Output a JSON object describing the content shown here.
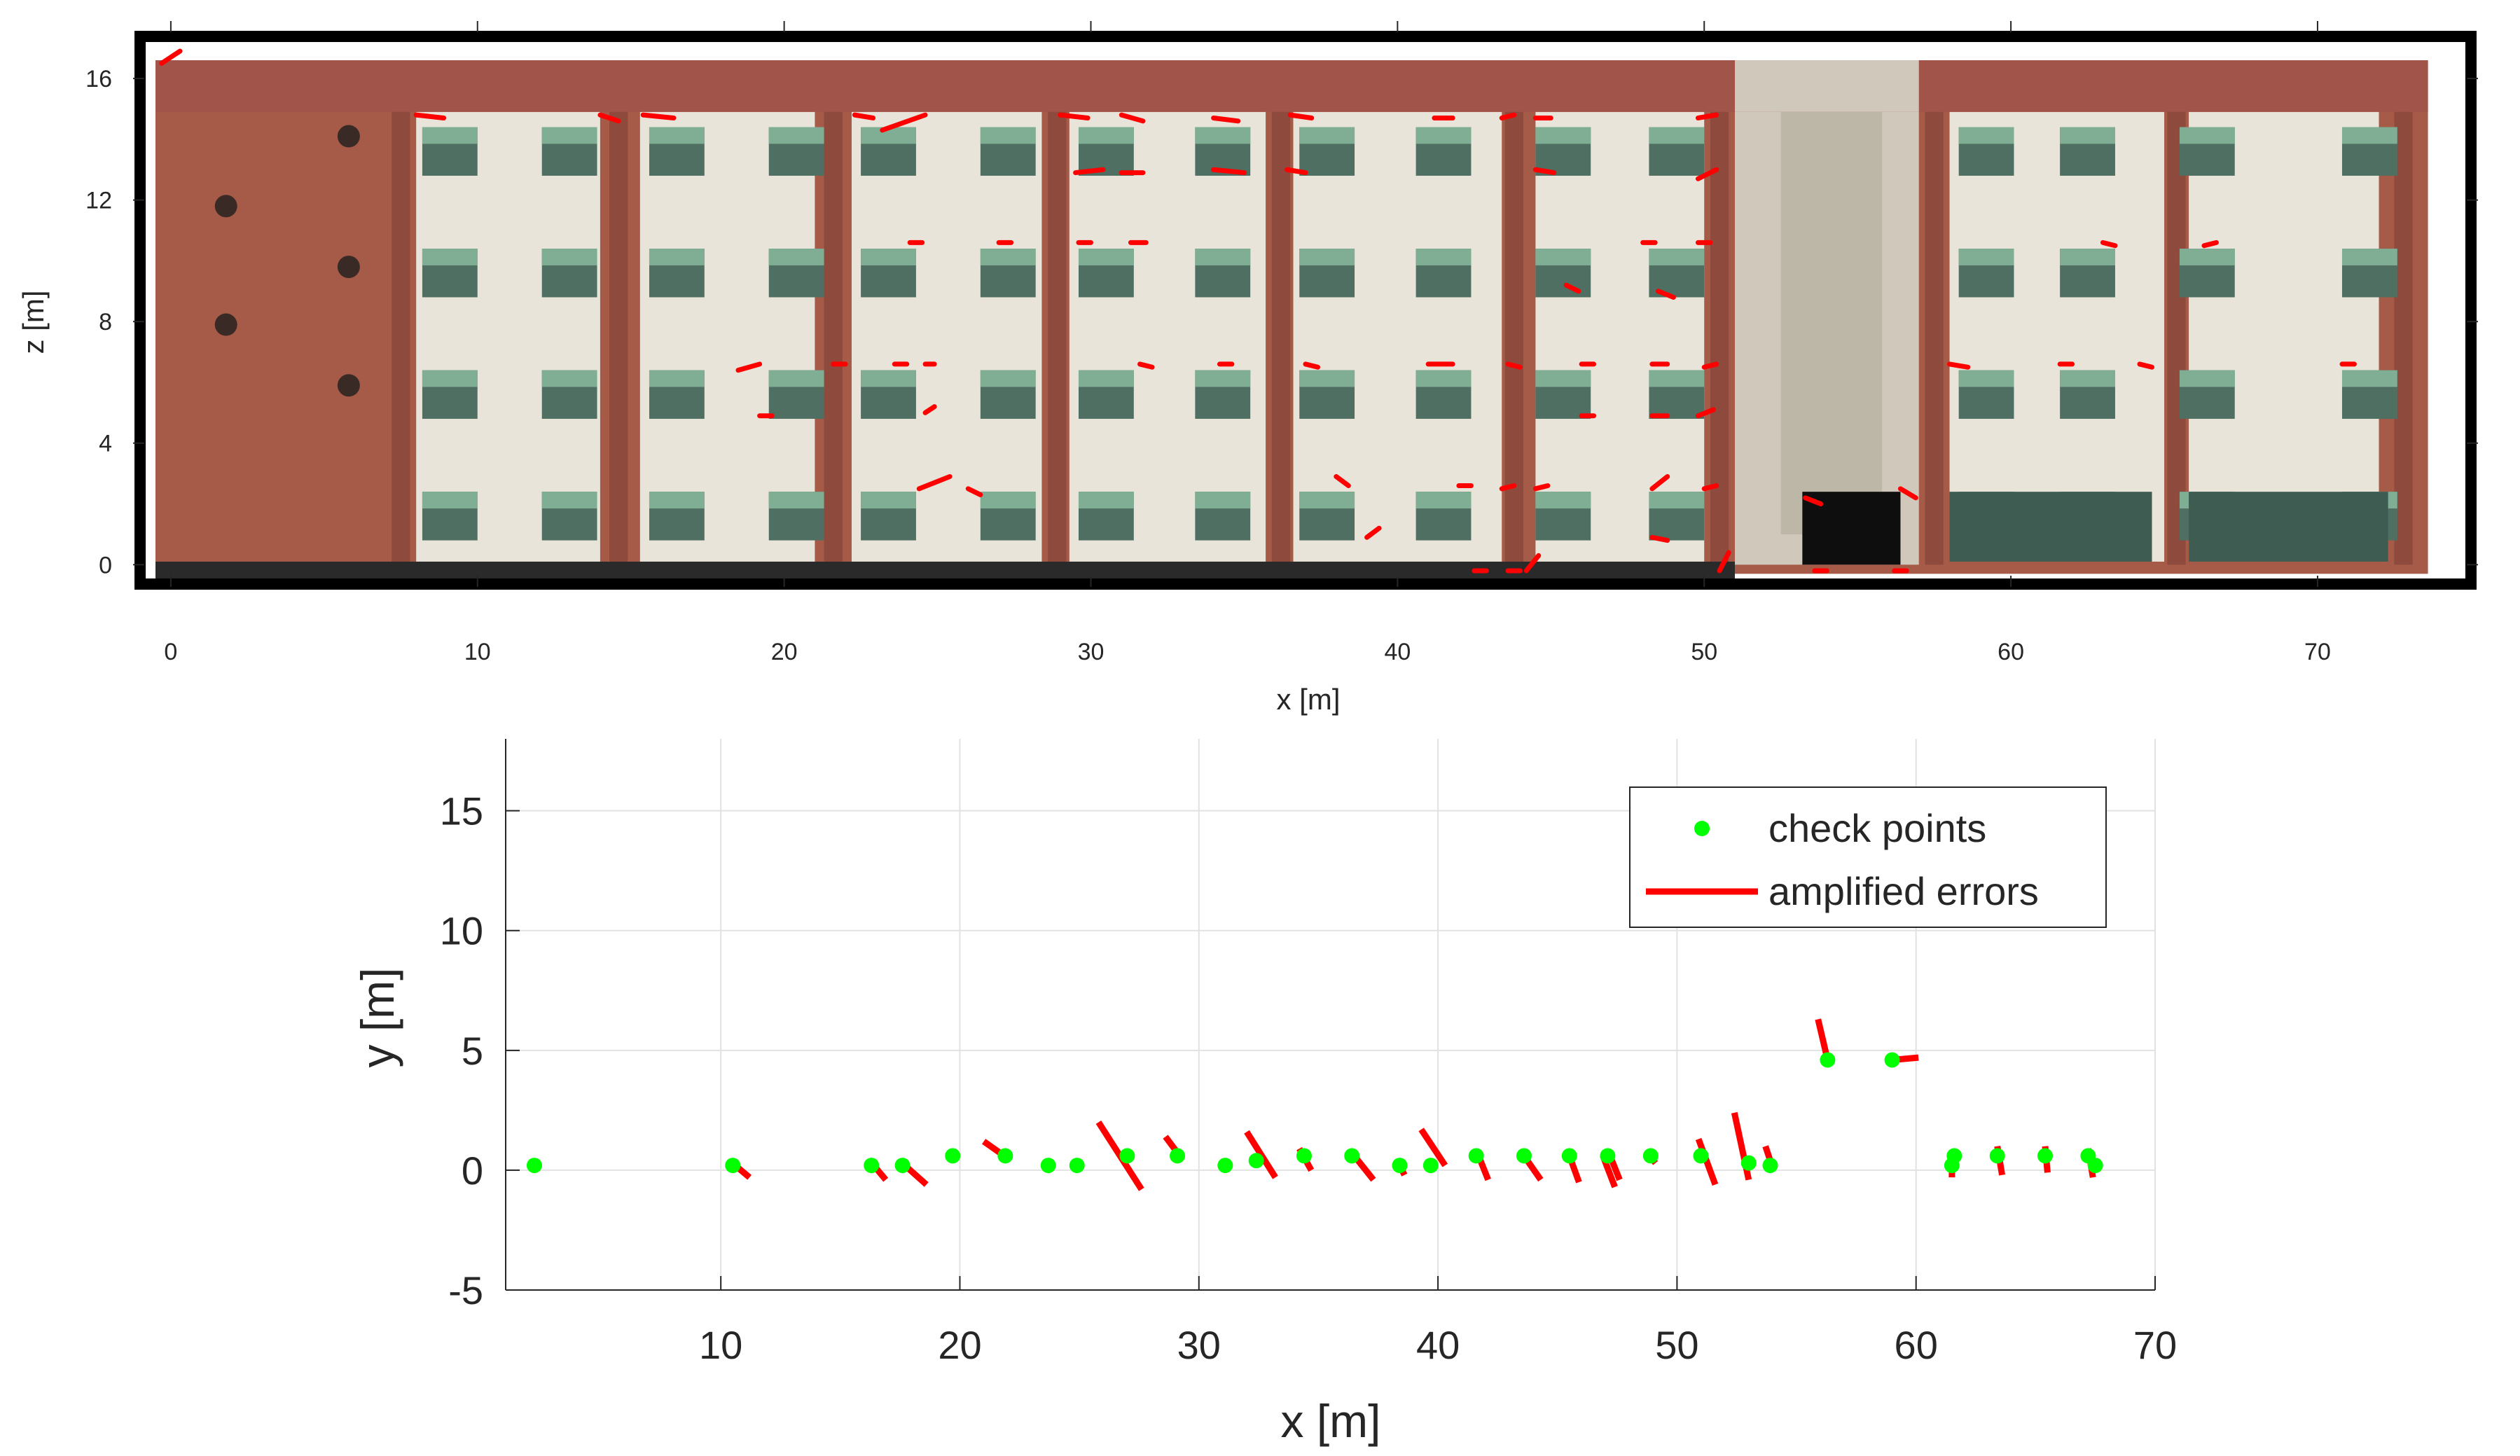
{
  "chart_data": [
    {
      "type": "scatter",
      "title": "",
      "background": "building facade orthophoto (point cloud) with red error segments",
      "xlabel": "x [m]",
      "ylabel": "z [m]",
      "xlim": [
        -0.5,
        74.5
      ],
      "ylim": [
        -0.5,
        17.2
      ],
      "xticks": [
        0,
        10,
        20,
        30,
        40,
        50,
        60,
        70
      ],
      "yticks": [
        0,
        4,
        8,
        12,
        16
      ],
      "grid": false,
      "colors": {
        "brick": "#a65a48",
        "brick_dark": "#8e4a3c",
        "plaster": "#e9e4d9",
        "window": "#4f6f62",
        "shade": "#7fae95",
        "error": "#ff0000",
        "frame": "#000000"
      },
      "error_segments": [
        [
          -0.3,
          16.5,
          0.3,
          16.9
        ],
        [
          8.0,
          14.8,
          8.9,
          14.7
        ],
        [
          14.0,
          14.8,
          14.6,
          14.6
        ],
        [
          15.4,
          14.8,
          16.4,
          14.7
        ],
        [
          22.3,
          14.8,
          22.9,
          14.7
        ],
        [
          23.2,
          14.3,
          24.6,
          14.8
        ],
        [
          29.0,
          14.8,
          29.9,
          14.7
        ],
        [
          31.0,
          14.8,
          31.7,
          14.6
        ],
        [
          36.5,
          14.8,
          37.2,
          14.7
        ],
        [
          34.0,
          14.7,
          34.8,
          14.6
        ],
        [
          41.2,
          14.7,
          41.8,
          14.7
        ],
        [
          43.4,
          14.7,
          43.8,
          14.8
        ],
        [
          44.5,
          14.7,
          45.0,
          14.7
        ],
        [
          49.8,
          14.7,
          50.4,
          14.8
        ],
        [
          29.5,
          12.9,
          30.4,
          13.0
        ],
        [
          31.0,
          12.9,
          31.7,
          12.9
        ],
        [
          34.0,
          13.0,
          35.0,
          12.9
        ],
        [
          36.4,
          13.0,
          37.0,
          12.9
        ],
        [
          44.5,
          13.0,
          45.1,
          12.9
        ],
        [
          49.8,
          12.7,
          50.4,
          13.0
        ],
        [
          24.1,
          10.6,
          24.5,
          10.6
        ],
        [
          27.0,
          10.6,
          27.4,
          10.6
        ],
        [
          31.3,
          10.6,
          31.8,
          10.6
        ],
        [
          29.6,
          10.6,
          30.0,
          10.6
        ],
        [
          48.0,
          10.6,
          48.4,
          10.6
        ],
        [
          49.8,
          10.6,
          50.2,
          10.6
        ],
        [
          45.5,
          9.2,
          45.9,
          9.0
        ],
        [
          48.5,
          9.0,
          49.0,
          8.8
        ],
        [
          63.0,
          10.6,
          63.4,
          10.5
        ],
        [
          66.3,
          10.5,
          66.7,
          10.6
        ],
        [
          18.5,
          6.4,
          19.2,
          6.6
        ],
        [
          19.2,
          4.9,
          19.6,
          4.9
        ],
        [
          21.6,
          6.6,
          22.0,
          6.6
        ],
        [
          23.6,
          6.6,
          24.0,
          6.6
        ],
        [
          24.6,
          6.6,
          24.9,
          6.6
        ],
        [
          24.6,
          5.0,
          24.9,
          5.2
        ],
        [
          31.6,
          6.6,
          32.0,
          6.5
        ],
        [
          34.2,
          6.6,
          34.6,
          6.6
        ],
        [
          37.0,
          6.6,
          37.4,
          6.5
        ],
        [
          41.0,
          6.6,
          41.8,
          6.6
        ],
        [
          43.6,
          6.6,
          44.0,
          6.5
        ],
        [
          46.0,
          6.6,
          46.4,
          6.6
        ],
        [
          46.0,
          4.9,
          46.4,
          4.9
        ],
        [
          48.3,
          6.6,
          48.8,
          6.6
        ],
        [
          50.0,
          6.5,
          50.4,
          6.6
        ],
        [
          48.3,
          4.9,
          48.8,
          4.9
        ],
        [
          49.8,
          4.9,
          50.3,
          5.1
        ],
        [
          58.0,
          6.6,
          58.6,
          6.5
        ],
        [
          61.6,
          6.6,
          62.0,
          6.6
        ],
        [
          64.2,
          6.6,
          64.6,
          6.5
        ],
        [
          70.8,
          6.6,
          71.2,
          6.6
        ],
        [
          24.4,
          2.5,
          25.4,
          2.9
        ],
        [
          26.0,
          2.5,
          26.4,
          2.3
        ],
        [
          38.0,
          2.9,
          38.4,
          2.6
        ],
        [
          42.0,
          2.6,
          42.4,
          2.6
        ],
        [
          43.4,
          2.5,
          43.8,
          2.6
        ],
        [
          44.5,
          2.5,
          44.9,
          2.6
        ],
        [
          48.3,
          2.5,
          48.8,
          2.9
        ],
        [
          50.0,
          2.5,
          50.4,
          2.6
        ],
        [
          39.0,
          0.9,
          39.4,
          1.2
        ],
        [
          48.3,
          0.9,
          48.8,
          0.8
        ],
        [
          53.3,
          2.2,
          53.8,
          2.0
        ],
        [
          56.4,
          2.5,
          56.9,
          2.2
        ],
        [
          43.6,
          -0.2,
          44.0,
          -0.2
        ],
        [
          44.2,
          -0.2,
          44.6,
          0.3
        ],
        [
          50.5,
          -0.2,
          50.8,
          0.4
        ],
        [
          53.6,
          -0.2,
          54.0,
          -0.2
        ],
        [
          56.2,
          -0.2,
          56.6,
          -0.2
        ],
        [
          42.5,
          -0.2,
          42.9,
          -0.2
        ]
      ]
    },
    {
      "type": "scatter",
      "title": "",
      "xlabel": "x [m]",
      "ylabel": "y [m]",
      "xlim": [
        1,
        70
      ],
      "ylim": [
        -5,
        18
      ],
      "xticks": [
        10,
        20,
        30,
        40,
        50,
        60,
        70
      ],
      "yticks": [
        -5,
        0,
        5,
        10,
        15
      ],
      "grid": true,
      "legend": {
        "placement": "top-right",
        "entries": [
          "check points",
          "amplified errors"
        ]
      },
      "colors": {
        "check_points": "#00ff00",
        "errors": "#ff0000",
        "grid": "#e2e2e2"
      },
      "series": [
        {
          "name": "check points",
          "points": [
            [
              2.2,
              0.2
            ],
            [
              10.5,
              0.2
            ],
            [
              16.3,
              0.2
            ],
            [
              17.6,
              0.2
            ],
            [
              19.7,
              0.6
            ],
            [
              21.9,
              0.6
            ],
            [
              23.7,
              0.2
            ],
            [
              24.9,
              0.2
            ],
            [
              27.0,
              0.6
            ],
            [
              29.1,
              0.6
            ],
            [
              31.1,
              0.2
            ],
            [
              32.4,
              0.4
            ],
            [
              34.4,
              0.6
            ],
            [
              36.4,
              0.6
            ],
            [
              38.4,
              0.2
            ],
            [
              39.7,
              0.2
            ],
            [
              41.6,
              0.6
            ],
            [
              43.6,
              0.6
            ],
            [
              45.5,
              0.6
            ],
            [
              47.1,
              0.6
            ],
            [
              48.9,
              0.6
            ],
            [
              51.0,
              0.6
            ],
            [
              53.0,
              0.3
            ],
            [
              53.9,
              0.2
            ],
            [
              56.3,
              4.6
            ],
            [
              59.0,
              4.6
            ],
            [
              61.5,
              0.2
            ],
            [
              61.6,
              0.6
            ],
            [
              63.4,
              0.6
            ],
            [
              65.4,
              0.6
            ],
            [
              67.2,
              0.6
            ],
            [
              67.5,
              0.2
            ]
          ]
        },
        {
          "name": "amplified errors",
          "segments": [
            [
              10.6,
              0.2,
              11.2,
              -0.3
            ],
            [
              16.4,
              0.2,
              16.9,
              -0.4
            ],
            [
              17.7,
              0.2,
              18.6,
              -0.6
            ],
            [
              21.0,
              1.2,
              22.0,
              0.5
            ],
            [
              25.8,
              2.0,
              27.6,
              -0.8
            ],
            [
              28.6,
              1.4,
              29.2,
              0.6
            ],
            [
              32.0,
              1.6,
              33.2,
              -0.3
            ],
            [
              34.2,
              0.9,
              34.7,
              0.0
            ],
            [
              36.5,
              0.6,
              37.3,
              -0.4
            ],
            [
              38.4,
              0.2,
              38.6,
              -0.2
            ],
            [
              39.3,
              1.7,
              40.3,
              0.2
            ],
            [
              41.7,
              0.6,
              42.1,
              -0.4
            ],
            [
              43.6,
              0.6,
              44.3,
              -0.4
            ],
            [
              45.5,
              0.6,
              45.9,
              -0.5
            ],
            [
              46.9,
              0.6,
              47.4,
              -0.7
            ],
            [
              47.2,
              0.6,
              47.6,
              -0.4
            ],
            [
              48.7,
              0.8,
              49.1,
              0.3
            ],
            [
              50.9,
              1.3,
              51.6,
              -0.6
            ],
            [
              52.4,
              2.4,
              53.0,
              -0.4
            ],
            [
              53.7,
              1.0,
              54.0,
              0.1
            ],
            [
              55.9,
              6.3,
              56.3,
              4.6
            ],
            [
              59.0,
              4.6,
              60.1,
              4.7
            ],
            [
              61.5,
              0.6,
              61.5,
              -0.3
            ],
            [
              63.4,
              1.0,
              63.6,
              -0.2
            ],
            [
              65.4,
              1.0,
              65.5,
              -0.1
            ],
            [
              67.2,
              0.9,
              67.4,
              -0.3
            ]
          ]
        }
      ]
    }
  ]
}
